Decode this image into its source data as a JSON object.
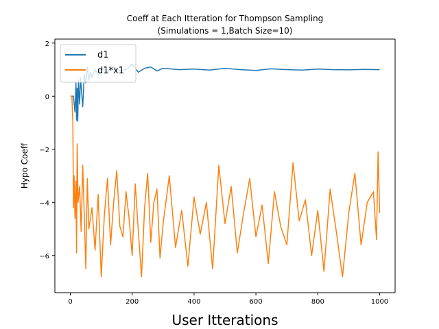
{
  "chart_data": {
    "type": "line",
    "title": "Coeff at Each Itteration for Thompson Sampling",
    "subtitle": "(Simulations = 1,Batch Size=10)",
    "xlabel": "User Itterations",
    "ylabel": "Hypo Coeff",
    "xlim": [
      -50,
      1050
    ],
    "ylim": [
      -7.4,
      2.15
    ],
    "x_ticks": [
      "0",
      "200",
      "400",
      "600",
      "800",
      "1000"
    ],
    "y_ticks": [
      "2",
      "0",
      "−2",
      "−4",
      "−6"
    ],
    "grid": false,
    "legend_position": "upper-left",
    "series": [
      {
        "name": "d1",
        "color": "#1f77b4",
        "x": [
          0,
          10,
          15,
          18,
          20,
          22,
          24,
          26,
          28,
          30,
          33,
          36,
          40,
          45,
          50,
          55,
          60,
          65,
          70,
          80,
          90,
          100,
          120,
          140,
          160,
          180,
          200,
          220,
          240,
          260,
          280,
          300,
          350,
          400,
          450,
          500,
          550,
          600,
          650,
          700,
          750,
          800,
          850,
          900,
          950,
          1000
        ],
        "values": [
          0.0,
          0.0,
          -0.6,
          0.5,
          -0.9,
          0.3,
          -0.95,
          0.6,
          0.1,
          -0.3,
          0.7,
          0.2,
          -0.4,
          0.8,
          0.5,
          1.1,
          0.6,
          0.9,
          0.7,
          1.0,
          0.8,
          1.05,
          0.9,
          1.1,
          0.95,
          1.0,
          1.2,
          0.9,
          1.05,
          1.1,
          0.95,
          1.05,
          1.0,
          1.02,
          0.98,
          1.05,
          1.0,
          0.97,
          1.03,
          1.0,
          0.98,
          1.02,
          1.0,
          0.99,
          1.01,
          1.0
        ]
      },
      {
        "name": "d1*x1",
        "color": "#ff7f0e",
        "x": [
          0,
          5,
          8,
          10,
          12,
          15,
          18,
          20,
          22,
          25,
          30,
          35,
          40,
          45,
          50,
          55,
          60,
          70,
          80,
          90,
          100,
          110,
          120,
          130,
          140,
          150,
          160,
          170,
          180,
          190,
          200,
          210,
          220,
          230,
          240,
          250,
          260,
          270,
          280,
          290,
          300,
          320,
          340,
          360,
          380,
          400,
          420,
          440,
          460,
          480,
          500,
          520,
          540,
          560,
          580,
          600,
          620,
          640,
          660,
          680,
          700,
          720,
          740,
          760,
          780,
          800,
          820,
          840,
          860,
          880,
          900,
          920,
          940,
          960,
          980,
          990,
          995,
          1000
        ],
        "values": [
          0.0,
          0.0,
          -1.0,
          -4.2,
          -3.0,
          -4.6,
          -3.2,
          -5.9,
          -1.8,
          -4.0,
          -3.4,
          -5.1,
          -2.6,
          -4.4,
          -6.5,
          -3.1,
          -5.0,
          -4.2,
          -5.8,
          -3.7,
          -6.8,
          -4.5,
          -3.1,
          -5.6,
          -4.0,
          -2.8,
          -4.9,
          -5.3,
          -3.6,
          -4.6,
          -6.0,
          -3.3,
          -5.1,
          -6.8,
          -4.2,
          -2.9,
          -5.5,
          -4.0,
          -3.5,
          -6.1,
          -4.8,
          -3.0,
          -5.7,
          -4.3,
          -6.4,
          -3.8,
          -5.2,
          -4.0,
          -6.5,
          -2.6,
          -4.8,
          -3.4,
          -5.9,
          -4.4,
          -3.1,
          -5.3,
          -4.1,
          -6.3,
          -3.6,
          -4.9,
          -5.6,
          -2.5,
          -4.7,
          -3.9,
          -6.0,
          -4.3,
          -6.6,
          -3.5,
          -5.1,
          -6.8,
          -4.4,
          -2.9,
          -5.6,
          -4.0,
          -3.6,
          -5.4,
          -2.1,
          -4.4
        ]
      }
    ]
  }
}
